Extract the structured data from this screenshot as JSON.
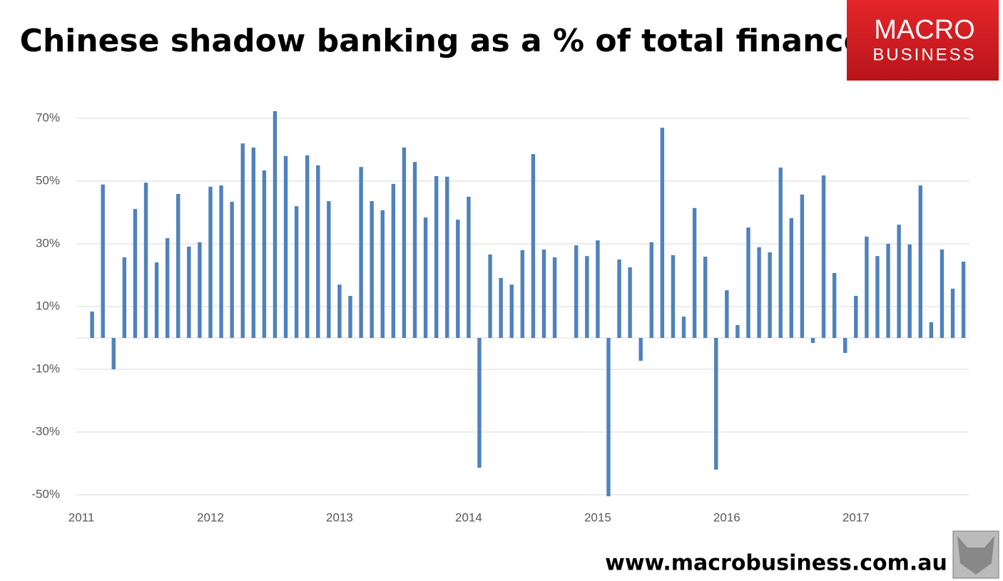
{
  "chart_data": {
    "type": "bar",
    "title": "Chinese shadow banking as a % of total finance",
    "logo": {
      "line1": "MACRO",
      "line2": "BUSINESS"
    },
    "footer": "www.macrobusiness.com.au",
    "categories": [
      "2011",
      null,
      null,
      null,
      null,
      null,
      null,
      null,
      null,
      null,
      null,
      null,
      "2012",
      null,
      null,
      null,
      null,
      null,
      null,
      null,
      null,
      null,
      null,
      null,
      "2013",
      null,
      null,
      null,
      null,
      null,
      null,
      null,
      null,
      null,
      null,
      null,
      "2014",
      null,
      null,
      null,
      null,
      null,
      null,
      null,
      null,
      null,
      null,
      null,
      "2015",
      null,
      null,
      null,
      null,
      null,
      null,
      null,
      null,
      null,
      null,
      null,
      "2016",
      null,
      null,
      null,
      null,
      null,
      null,
      null,
      null,
      null,
      null,
      null,
      "2017",
      null,
      null,
      null,
      null,
      null,
      null,
      null,
      null,
      null,
      null
    ],
    "values": [
      null,
      8.4,
      48.9,
      -10,
      25.7,
      41.1,
      49.5,
      24.1,
      31.8,
      45.9,
      29.1,
      30.5,
      48.2,
      48.6,
      43.4,
      62,
      60.7,
      53.4,
      72.3,
      58,
      42,
      58.2,
      55,
      43.6,
      17,
      13.4,
      54.5,
      43.6,
      40.7,
      49.1,
      60.7,
      56.1,
      38.4,
      51.6,
      51.4,
      37.7,
      45,
      -41.4,
      26.6,
      19.1,
      17,
      28,
      58.6,
      28.2,
      25.7,
      null,
      29.5,
      26.1,
      31.1,
      -50.5,
      25,
      22.5,
      -7.3,
      30.5,
      67,
      26.4,
      6.8,
      41.4,
      25.9,
      -42,
      15.2,
      4.1,
      35.2,
      28.9,
      27.3,
      54.3,
      38.2,
      45.7,
      -1.6,
      51.8,
      20.7,
      -4.8,
      13.4,
      32.3,
      26.1,
      30,
      36.1,
      29.8,
      48.6,
      5,
      28.2,
      15.7,
      24.3
    ],
    "color": "#4f81bd",
    "ylim": [
      -51,
      75
    ],
    "yticks": [
      {
        "value": -50,
        "label": "-50%"
      },
      {
        "value": -30,
        "label": "-30%"
      },
      {
        "value": -10,
        "label": "-10%"
      },
      {
        "value": 10,
        "label": "10%"
      },
      {
        "value": 30,
        "label": "30%"
      },
      {
        "value": 50,
        "label": "50%"
      },
      {
        "value": 70,
        "label": "70%"
      }
    ],
    "grid": true
  }
}
